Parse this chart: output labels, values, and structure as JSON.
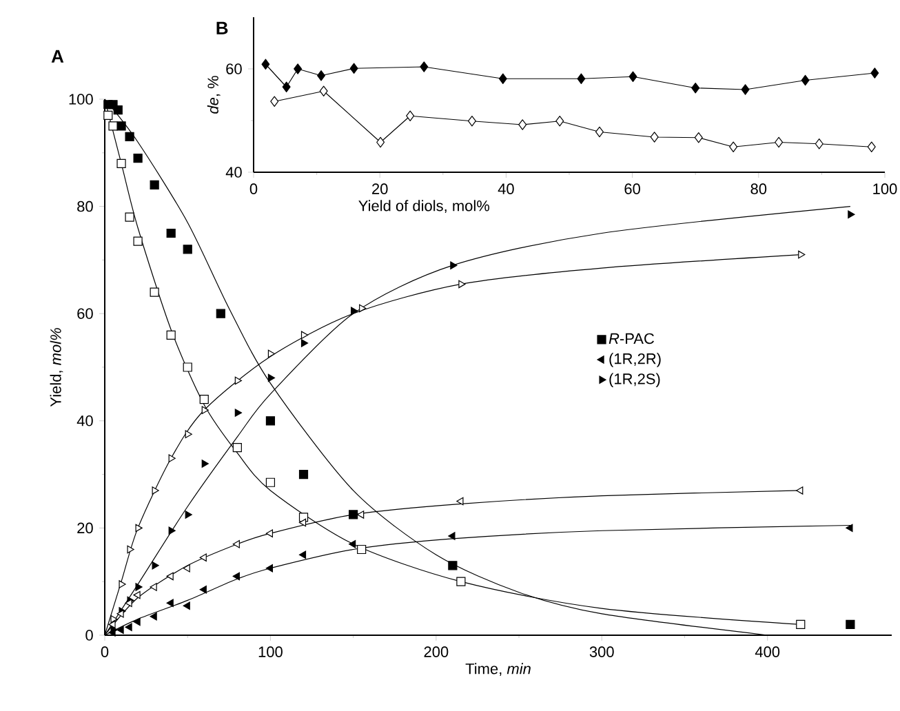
{
  "chart_data": [
    {
      "type": "scatter",
      "xlabel": "Time, *min*",
      "ylabel": "Yield, *mol%*",
      "annotations": [
        "A"
      ],
      "xlim": [
        0,
        475
      ],
      "ylim": [
        0,
        100
      ],
      "xticks": [
        0,
        100,
        200,
        300,
        400
      ],
      "yticks": [
        0,
        20,
        40,
        60,
        80,
        100
      ],
      "legend": "right",
      "series": [
        {
          "name": "*R*-PAC",
          "color": "#000000",
          "marker": "square",
          "x": [
            2,
            5,
            8,
            10,
            15,
            20,
            30,
            40,
            50,
            70,
            100,
            120,
            150,
            210,
            450
          ],
          "values": [
            99,
            99,
            98,
            95,
            93,
            89,
            84,
            75,
            72,
            60,
            40,
            30,
            22.5,
            13,
            2
          ]
        },
        {
          "name": "(1R,2R)",
          "color": "#000000",
          "marker": "triangle-left",
          "x": [
            5,
            10,
            15,
            20,
            30,
            40,
            50,
            60,
            80,
            100,
            120,
            150,
            210,
            450
          ],
          "values": [
            0.5,
            1,
            1.5,
            2.5,
            3.5,
            6,
            5.5,
            8.5,
            11,
            12.5,
            15,
            17,
            18.5,
            20
          ]
        },
        {
          "name": "(1R,2S)",
          "color": "#000000",
          "marker": "triangle-right",
          "x": [
            5,
            10,
            15,
            20,
            30,
            40,
            50,
            60,
            80,
            100,
            120,
            150,
            210,
            450
          ],
          "values": [
            1,
            4.5,
            6.5,
            9,
            13,
            19.5,
            22.5,
            32,
            41.5,
            48,
            54.5,
            60.5,
            69,
            78.5
          ]
        },
        {
          "color": "#ffffff",
          "marker": "square",
          "x": [
            2,
            5,
            10,
            15,
            20,
            30,
            40,
            50,
            60,
            80,
            100,
            120,
            155,
            215,
            420
          ],
          "values": [
            97,
            95,
            88,
            78,
            73.5,
            64,
            56,
            50,
            44,
            35,
            28.5,
            22,
            16,
            10,
            2
          ]
        },
        {
          "color": "#ffffff",
          "marker": "triangle-left",
          "x": [
            5,
            10,
            15,
            20,
            30,
            40,
            50,
            60,
            80,
            100,
            120,
            155,
            215,
            420
          ],
          "values": [
            2,
            4,
            6,
            7.5,
            9,
            11,
            12.5,
            14.5,
            17,
            19,
            21,
            22.5,
            25,
            27
          ]
        },
        {
          "color": "#ffffff",
          "marker": "triangle-right",
          "x": [
            5,
            10,
            15,
            20,
            30,
            40,
            50,
            60,
            80,
            100,
            120,
            155,
            215,
            420
          ],
          "values": [
            3,
            9.5,
            16,
            20,
            27,
            33,
            37.5,
            42,
            47.5,
            52.5,
            56,
            61,
            65.5,
            71
          ]
        },
        {
          "type": "line",
          "color": "#000000",
          "marker": "none",
          "x": [
            0,
            20,
            50,
            75,
            100,
            150,
            200,
            250,
            300,
            400
          ],
          "values": [
            100,
            92,
            77,
            61,
            47,
            27,
            15,
            8,
            4,
            0
          ]
        },
        {
          "type": "line",
          "color": "#000000",
          "marker": "none",
          "x": [
            0,
            10,
            20,
            40,
            60,
            80,
            100,
            150,
            215,
            300,
            420
          ],
          "values": [
            100,
            88,
            76,
            57,
            43,
            34,
            27,
            17,
            10,
            5,
            2
          ]
        },
        {
          "type": "line",
          "color": "#000000",
          "marker": "none",
          "x": [
            0,
            20,
            50,
            80,
            100,
            150,
            210,
            300,
            450
          ],
          "values": [
            0,
            3,
            6.5,
            10.5,
            12.5,
            16,
            18,
            19.5,
            20.5
          ]
        },
        {
          "type": "line",
          "color": "#000000",
          "marker": "none",
          "x": [
            0,
            20,
            50,
            80,
            100,
            150,
            215,
            300,
            420
          ],
          "values": [
            0,
            7,
            13,
            17,
            19,
            22.5,
            24.5,
            26,
            27
          ]
        },
        {
          "type": "line",
          "color": "#000000",
          "marker": "none",
          "x": [
            0,
            20,
            50,
            80,
            100,
            150,
            210,
            300,
            450
          ],
          "values": [
            0,
            9.5,
            24,
            37,
            45,
            60,
            69,
            75,
            80
          ]
        },
        {
          "type": "line",
          "color": "#000000",
          "marker": "none",
          "x": [
            0,
            10,
            20,
            40,
            60,
            100,
            150,
            215,
            300,
            420
          ],
          "values": [
            0,
            10,
            20,
            33,
            42,
            52,
            60,
            65.5,
            68.5,
            71
          ]
        }
      ]
    },
    {
      "type": "line",
      "xlabel": "Yield of diols, mol%",
      "ylabel": "*de*, %",
      "annotations": [
        "B"
      ],
      "xlim": [
        0,
        100
      ],
      "ylim": [
        40,
        70
      ],
      "xticks": [
        0,
        20,
        40,
        60,
        80,
        100
      ],
      "yticks": [
        40,
        60
      ],
      "marker": "diamond",
      "series": [
        {
          "color": "#000000",
          "x": [
            1.9,
            5.2,
            7,
            10.7,
            15.9,
            27,
            39.5,
            51.9,
            60.1,
            70,
            77.9,
            87.4,
            98.4
          ],
          "values": [
            60.9,
            56.5,
            60,
            58.7,
            60.1,
            60.4,
            58.1,
            58.1,
            58.5,
            56.3,
            56,
            57.8,
            59.2
          ]
        },
        {
          "color": "#ffffff",
          "x": [
            3.3,
            11.1,
            20.1,
            24.8,
            34.6,
            42.6,
            48.5,
            54.8,
            63.5,
            70.5,
            76,
            83.2,
            89.6,
            97.9
          ],
          "values": [
            53.7,
            55.7,
            45.8,
            50.9,
            49.9,
            49.2,
            49.9,
            47.8,
            46.8,
            46.7,
            44.9,
            45.8,
            45.5,
            44.9
          ]
        }
      ]
    }
  ]
}
